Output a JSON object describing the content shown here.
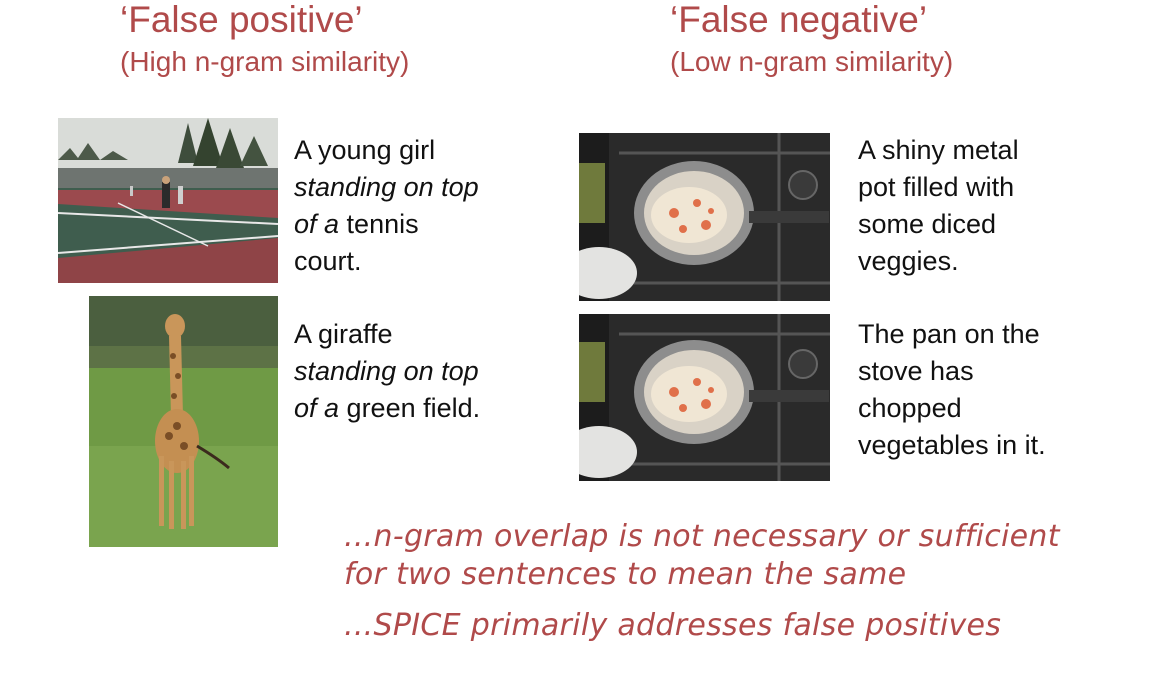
{
  "left": {
    "title": "‘False positive’",
    "subtitle": "(High n-gram similarity)",
    "examples": [
      {
        "line1": "A young girl",
        "line2_italic": "standing on top",
        "line3_italic": "of a",
        "line3_rest": " tennis",
        "line4": "court.",
        "image": "tennis-court-photo"
      },
      {
        "line1": "A giraffe",
        "line2_italic": "standing on top",
        "line3_italic": "of a",
        "line3_rest": " green field.",
        "image": "giraffe-field-photo"
      }
    ]
  },
  "right": {
    "title": "‘False negative’",
    "subtitle": "(Low n-gram similarity)",
    "examples": [
      {
        "lines": [
          "A shiny metal",
          "pot filled with",
          "some diced",
          "veggies."
        ],
        "image": "pot-on-stove-photo"
      },
      {
        "lines": [
          "The pan on the",
          "stove has",
          "chopped",
          "vegetables in it."
        ],
        "image": "pot-on-stove-photo"
      }
    ]
  },
  "notes": [
    "...n-gram overlap is not necessary or sufficient",
    "for two sentences to mean the same",
    "...SPICE primarily addresses false positives"
  ],
  "colors": {
    "accent": "#b04a4a",
    "text": "#111111",
    "background": "#ffffff"
  }
}
